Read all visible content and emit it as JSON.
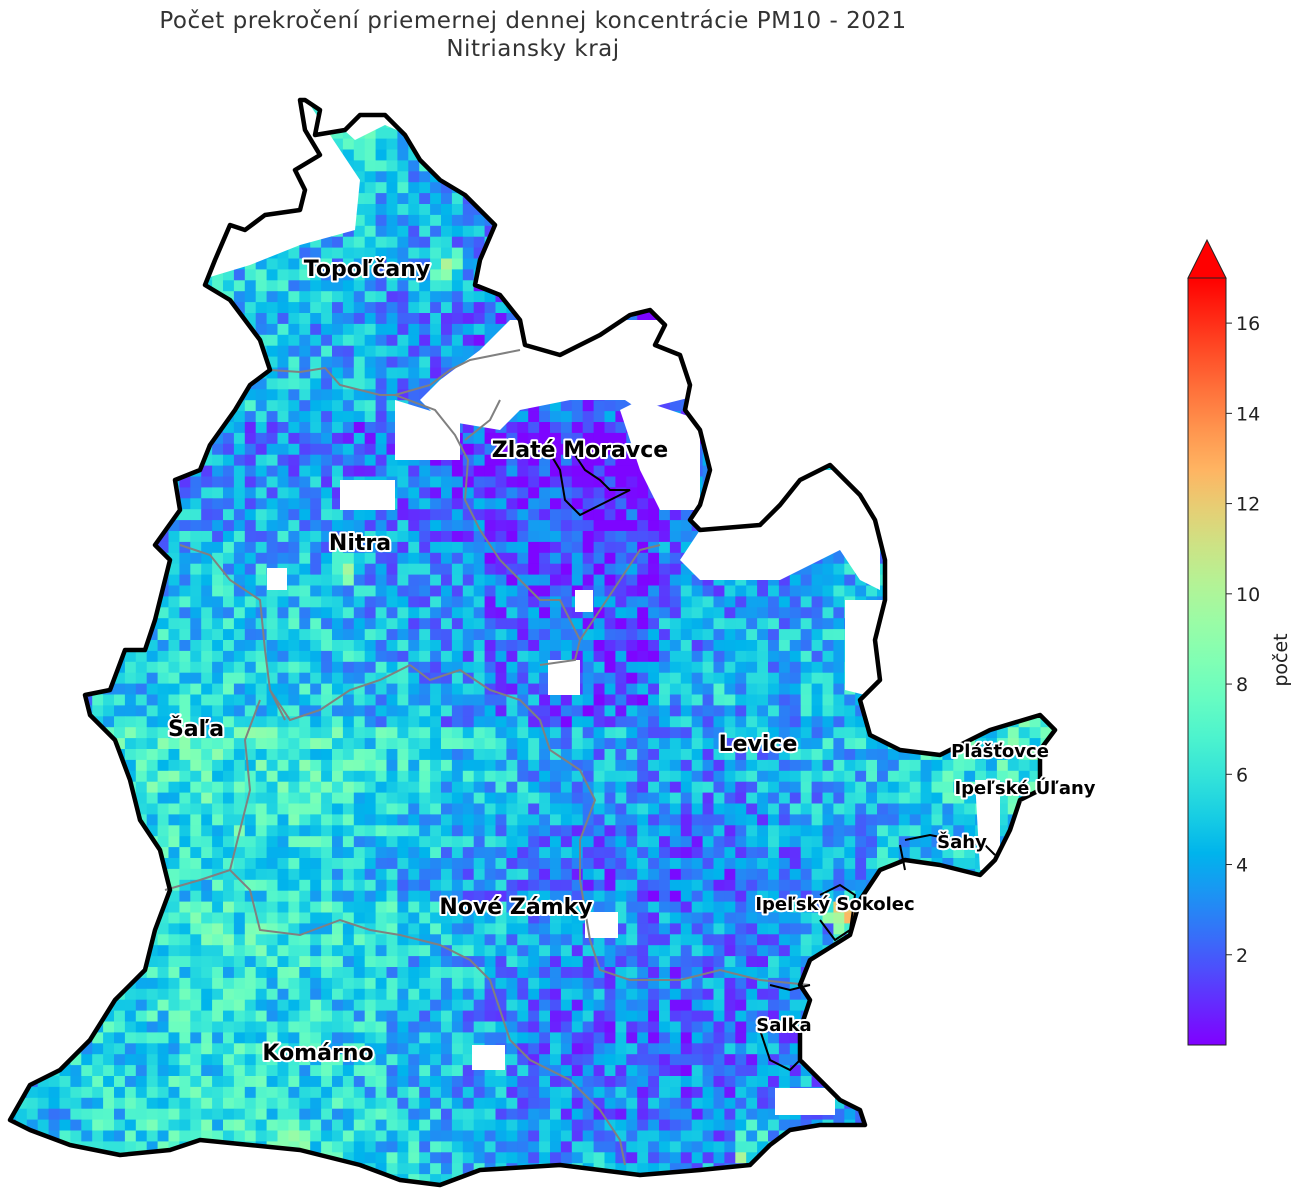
{
  "chart_data": {
    "type": "heatmap",
    "title": "Počet prekročení priemernej dennej koncentrácie PM10 - 2021",
    "subtitle": "Nitriansky kraj",
    "colormap": "rainbow",
    "colorbar": {
      "label": "počet",
      "range": [
        0,
        17
      ],
      "ticks": [
        "2",
        "4",
        "6",
        "8",
        "10",
        "12",
        "14",
        "16"
      ],
      "extend": "max"
    },
    "district_labels": [
      "Topoľčany",
      "Zlaté Moravce",
      "Nitra",
      "Šaľa",
      "Levice",
      "Nové Zámky",
      "Komárno"
    ],
    "town_labels": [
      "Plášťovce",
      "Ipeľské Úľany",
      "Šahy",
      "Ipeľský Sokolec",
      "Salka"
    ]
  }
}
